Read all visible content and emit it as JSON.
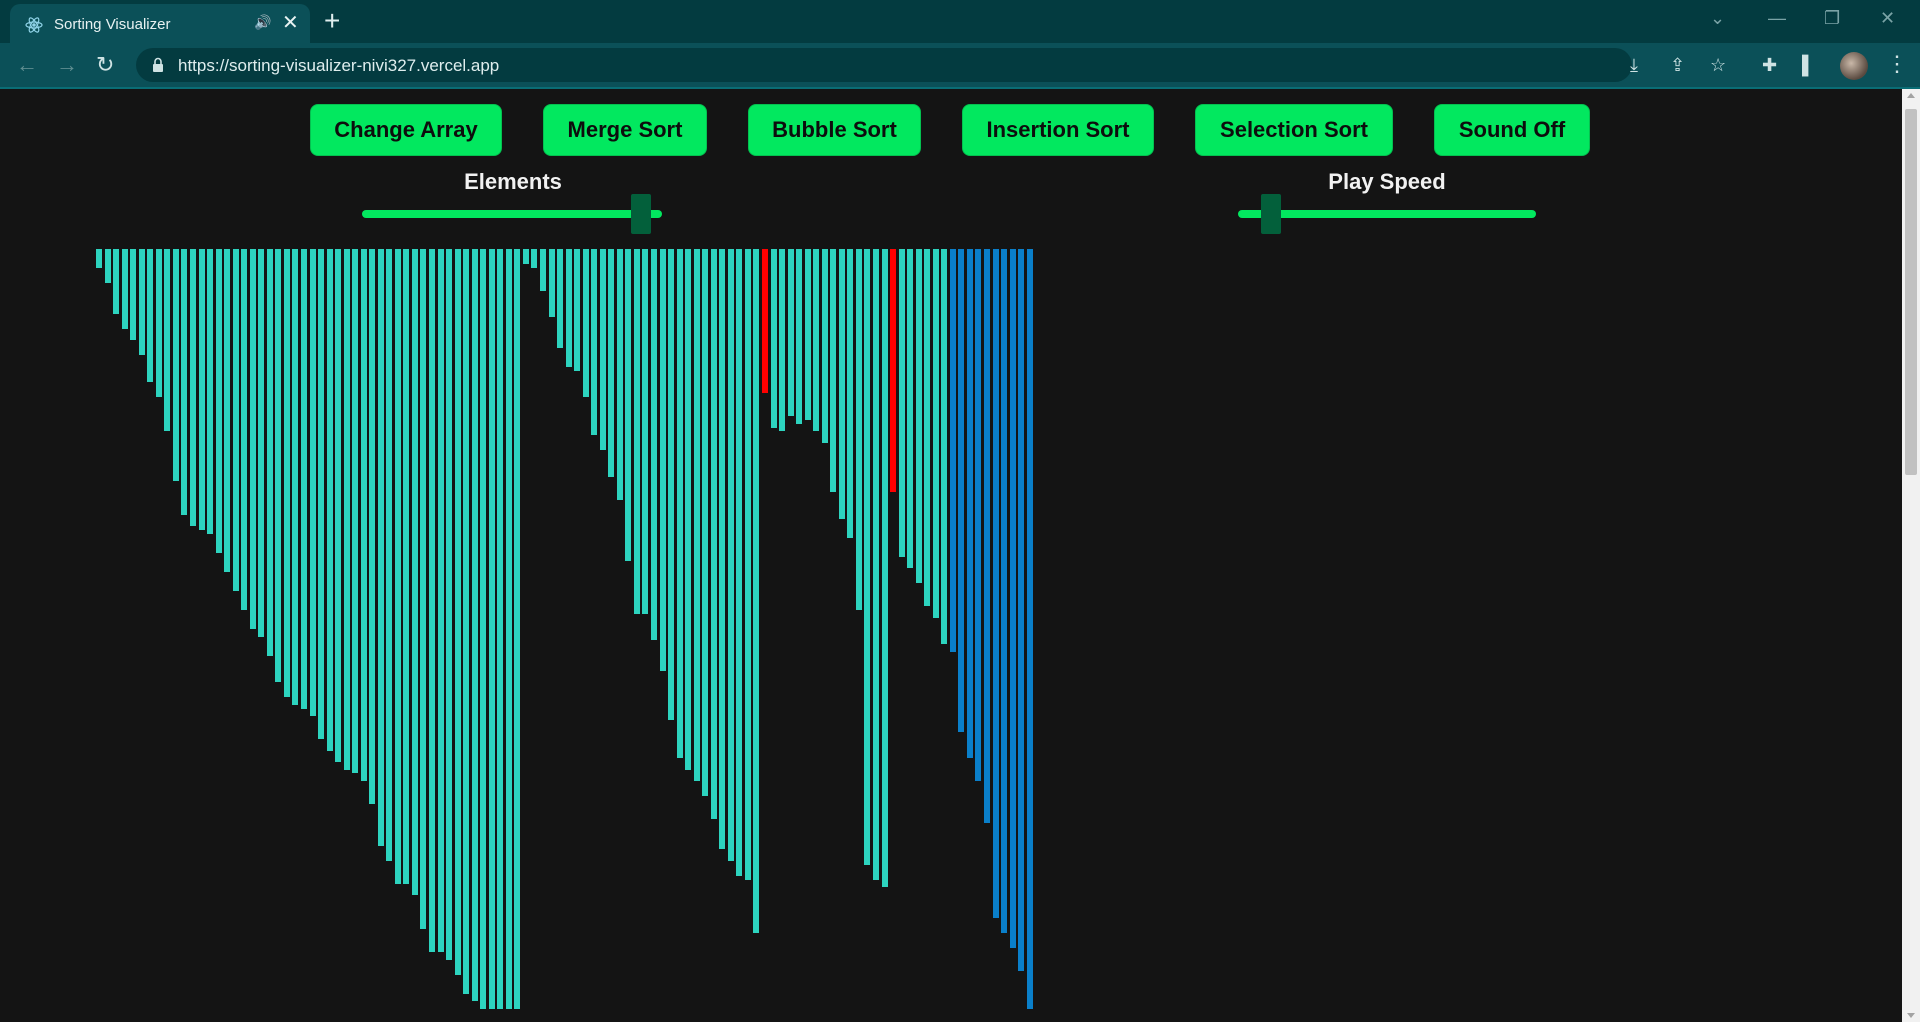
{
  "browser": {
    "tab_title": "Sorting Visualizer",
    "url": "https://sorting-visualizer-nivi327.vercel.app",
    "icons": [
      "react-logo-icon",
      "speaker-icon",
      "close-icon",
      "plus-icon",
      "chevron-down-icon",
      "minimize-icon",
      "restore-icon",
      "window-close-icon",
      "back-arrow-icon",
      "forward-arrow-icon",
      "reload-icon",
      "lock-icon",
      "install-icon",
      "share-icon",
      "star-icon",
      "puzzle-icon",
      "sidebar-icon",
      "avatar",
      "kebab-menu-icon"
    ]
  },
  "controls": {
    "buttons": [
      "Change Array",
      "Merge Sort",
      "Bubble Sort",
      "Insertion Sort",
      "Selection Sort",
      "Sound Off"
    ],
    "sliders": [
      {
        "label": "Elements",
        "value_fraction": 0.93
      },
      {
        "label": "Play Speed",
        "value_fraction": 0.11
      }
    ]
  },
  "colors": {
    "button": "#02e85f",
    "sorted_bar": "#2dd4bf",
    "unsorted_bar": "#0a7fca",
    "compare_bar": "#ff0000",
    "background": "#141414"
  },
  "array": {
    "max_value": 100,
    "compare_indices": [
      78,
      93
    ],
    "sorted_until": 99,
    "values": [
      2.5,
      4.5,
      8.5,
      10.5,
      12,
      14,
      17.5,
      19.5,
      24,
      30.5,
      35,
      36.5,
      37,
      37.5,
      40,
      42.5,
      45,
      47.5,
      50,
      51,
      53.5,
      57,
      59,
      60,
      60.5,
      61.5,
      64.5,
      66,
      67.5,
      68.5,
      69,
      70,
      73,
      78.5,
      80.5,
      83.5,
      83.5,
      85,
      89.5,
      92.5,
      92.5,
      93.5,
      95.5,
      98,
      99,
      100,
      100,
      100,
      100,
      100,
      2,
      2.5,
      5.5,
      9,
      13,
      15.5,
      16,
      19.5,
      24.5,
      26.5,
      30,
      33,
      41,
      48,
      48,
      51.5,
      55.5,
      62,
      67,
      68.5,
      70,
      72,
      75,
      79,
      80.5,
      82.5,
      83,
      90,
      19,
      23.5,
      24,
      22,
      23,
      22.5,
      24,
      25.5,
      32,
      35.5,
      38,
      47.5,
      81,
      83,
      84,
      32,
      40.5,
      42,
      44,
      47,
      48.5,
      52,
      53,
      63.5,
      67,
      70,
      75.5,
      88,
      90,
      92,
      95,
      100
    ]
  }
}
